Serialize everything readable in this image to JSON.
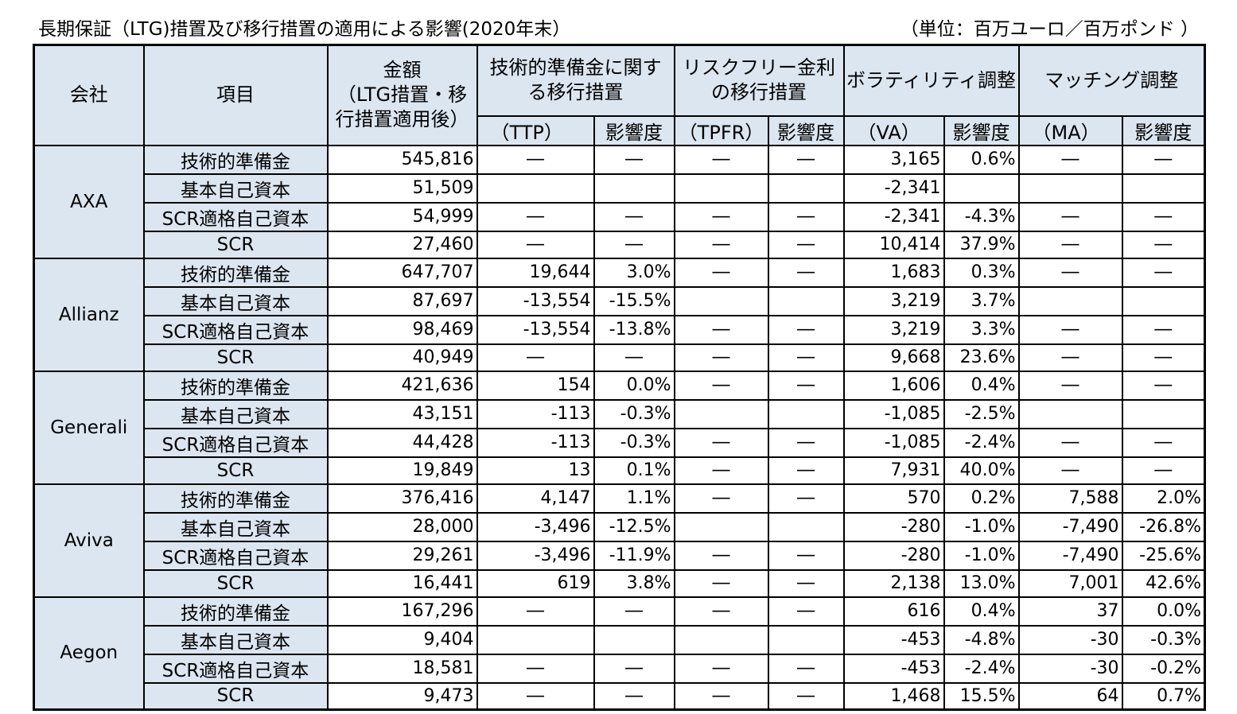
{
  "title": "長期保証（LTG)措置及び移行措置の適用による影響(2020年末）",
  "unit": "（単位：百万ユーロ／百万ポンド ）",
  "headers": {
    "company": "会社",
    "item": "項目",
    "amount": "金額\n（LTG措置・移行措置適用後）",
    "ttp_group": "技術的準備金に関する移行措置",
    "tpfr_group": "リスクフリー金利の移行措置",
    "va_group": "ボラティリティ調整",
    "ma_group": "マッチング調整",
    "ttp": "（TTP）",
    "tpfr": "（TPFR）",
    "va": "（VA）",
    "ma": "（MA）",
    "impact": "影響度"
  },
  "companies": [
    {
      "name": "AXA",
      "rows": [
        {
          "item": "技術的準備金",
          "amount": "545,816",
          "ttp": "―",
          "ttp_pct": "―",
          "tpfr": "―",
          "tpfr_pct": "―",
          "va": "3,165",
          "va_pct": "0.6%",
          "ma": "―",
          "ma_pct": "―"
        },
        {
          "item": "基本自己資本",
          "amount": "51,509",
          "ttp": "",
          "ttp_pct": "",
          "tpfr": "",
          "tpfr_pct": "",
          "va": "-2,341",
          "va_pct": "",
          "ma": "",
          "ma_pct": ""
        },
        {
          "item": "SCR適格自己資本",
          "amount": "54,999",
          "ttp": "―",
          "ttp_pct": "―",
          "tpfr": "―",
          "tpfr_pct": "―",
          "va": "-2,341",
          "va_pct": "-4.3%",
          "ma": "―",
          "ma_pct": "―"
        },
        {
          "item": "SCR",
          "amount": "27,460",
          "ttp": "―",
          "ttp_pct": "―",
          "tpfr": "―",
          "tpfr_pct": "―",
          "va": "10,414",
          "va_pct": "37.9%",
          "ma": "―",
          "ma_pct": "―"
        }
      ]
    },
    {
      "name": "Allianz",
      "rows": [
        {
          "item": "技術的準備金",
          "amount": "647,707",
          "ttp": "19,644",
          "ttp_pct": "3.0%",
          "tpfr": "―",
          "tpfr_pct": "―",
          "va": "1,683",
          "va_pct": "0.3%",
          "ma": "―",
          "ma_pct": "―"
        },
        {
          "item": "基本自己資本",
          "amount": "87,697",
          "ttp": "-13,554",
          "ttp_pct": "-15.5%",
          "tpfr": "",
          "tpfr_pct": "",
          "va": "3,219",
          "va_pct": "3.7%",
          "ma": "",
          "ma_pct": ""
        },
        {
          "item": "SCR適格自己資本",
          "amount": "98,469",
          "ttp": "-13,554",
          "ttp_pct": "-13.8%",
          "tpfr": "―",
          "tpfr_pct": "―",
          "va": "3,219",
          "va_pct": "3.3%",
          "ma": "―",
          "ma_pct": "―"
        },
        {
          "item": "SCR",
          "amount": "40,949",
          "ttp": "―",
          "ttp_pct": "―",
          "tpfr": "―",
          "tpfr_pct": "―",
          "va": "9,668",
          "va_pct": "23.6%",
          "ma": "―",
          "ma_pct": "―"
        }
      ]
    },
    {
      "name": "Generali",
      "rows": [
        {
          "item": "技術的準備金",
          "amount": "421,636",
          "ttp": "154",
          "ttp_pct": "0.0%",
          "tpfr": "―",
          "tpfr_pct": "―",
          "va": "1,606",
          "va_pct": "0.4%",
          "ma": "―",
          "ma_pct": "―"
        },
        {
          "item": "基本自己資本",
          "amount": "43,151",
          "ttp": "-113",
          "ttp_pct": "-0.3%",
          "tpfr": "",
          "tpfr_pct": "",
          "va": "-1,085",
          "va_pct": "-2.5%",
          "ma": "",
          "ma_pct": ""
        },
        {
          "item": "SCR適格自己資本",
          "amount": "44,428",
          "ttp": "-113",
          "ttp_pct": "-0.3%",
          "tpfr": "―",
          "tpfr_pct": "―",
          "va": "-1,085",
          "va_pct": "-2.4%",
          "ma": "―",
          "ma_pct": "―"
        },
        {
          "item": "SCR",
          "amount": "19,849",
          "ttp": "13",
          "ttp_pct": "0.1%",
          "tpfr": "―",
          "tpfr_pct": "―",
          "va": "7,931",
          "va_pct": "40.0%",
          "ma": "―",
          "ma_pct": "―"
        }
      ]
    },
    {
      "name": "Aviva",
      "rows": [
        {
          "item": "技術的準備金",
          "amount": "376,416",
          "ttp": "4,147",
          "ttp_pct": "1.1%",
          "tpfr": "―",
          "tpfr_pct": "―",
          "va": "570",
          "va_pct": "0.2%",
          "ma": "7,588",
          "ma_pct": "2.0%"
        },
        {
          "item": "基本自己資本",
          "amount": "28,000",
          "ttp": "-3,496",
          "ttp_pct": "-12.5%",
          "tpfr": "",
          "tpfr_pct": "",
          "va": "-280",
          "va_pct": "-1.0%",
          "ma": "-7,490",
          "ma_pct": "-26.8%"
        },
        {
          "item": "SCR適格自己資本",
          "amount": "29,261",
          "ttp": "-3,496",
          "ttp_pct": "-11.9%",
          "tpfr": "―",
          "tpfr_pct": "―",
          "va": "-280",
          "va_pct": "-1.0%",
          "ma": "-7,490",
          "ma_pct": "-25.6%"
        },
        {
          "item": "SCR",
          "amount": "16,441",
          "ttp": "619",
          "ttp_pct": "3.8%",
          "tpfr": "―",
          "tpfr_pct": "―",
          "va": "2,138",
          "va_pct": "13.0%",
          "ma": "7,001",
          "ma_pct": "42.6%"
        }
      ]
    },
    {
      "name": "Aegon",
      "rows": [
        {
          "item": "技術的準備金",
          "amount": "167,296",
          "ttp": "―",
          "ttp_pct": "―",
          "tpfr": "―",
          "tpfr_pct": "―",
          "va": "616",
          "va_pct": "0.4%",
          "ma": "37",
          "ma_pct": "0.0%"
        },
        {
          "item": "基本自己資本",
          "amount": "9,404",
          "ttp": "",
          "ttp_pct": "",
          "tpfr": "",
          "tpfr_pct": "",
          "va": "-453",
          "va_pct": "-4.8%",
          "ma": "-30",
          "ma_pct": "-0.3%"
        },
        {
          "item": "SCR適格自己資本",
          "amount": "18,581",
          "ttp": "―",
          "ttp_pct": "―",
          "tpfr": "―",
          "tpfr_pct": "―",
          "va": "-453",
          "va_pct": "-2.4%",
          "ma": "-30",
          "ma_pct": "-0.2%"
        },
        {
          "item": "SCR",
          "amount": "9,473",
          "ttp": "―",
          "ttp_pct": "―",
          "tpfr": "―",
          "tpfr_pct": "―",
          "va": "1,468",
          "va_pct": "15.5%",
          "ma": "64",
          "ma_pct": "0.7%"
        }
      ]
    }
  ]
}
